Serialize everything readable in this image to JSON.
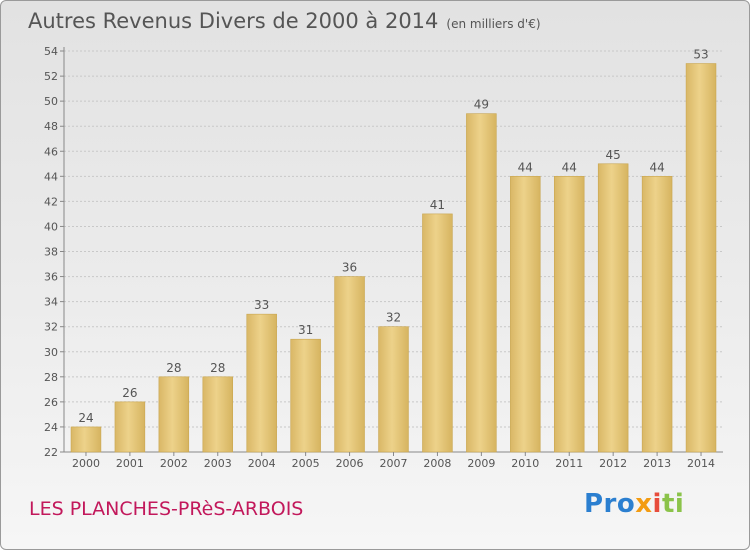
{
  "chart_data": {
    "type": "bar",
    "title": "Autres Revenus Divers de 2000 à 2014",
    "unit": "(en milliers d'€)",
    "categories": [
      "2000",
      "2001",
      "2002",
      "2003",
      "2004",
      "2005",
      "2006",
      "2007",
      "2008",
      "2009",
      "2010",
      "2011",
      "2012",
      "2013",
      "2014"
    ],
    "values": [
      24,
      26,
      28,
      28,
      33,
      31,
      36,
      32,
      41,
      49,
      44,
      44,
      45,
      44,
      53
    ],
    "ylim": [
      22,
      54
    ],
    "ytick_step": 2,
    "grid": true,
    "bar_color": "#edd28a"
  },
  "place_name": "LES PLANCHES-PRèS-ARBOIS",
  "logo": {
    "parts": [
      "Pro",
      "x",
      "i",
      "ti"
    ]
  }
}
